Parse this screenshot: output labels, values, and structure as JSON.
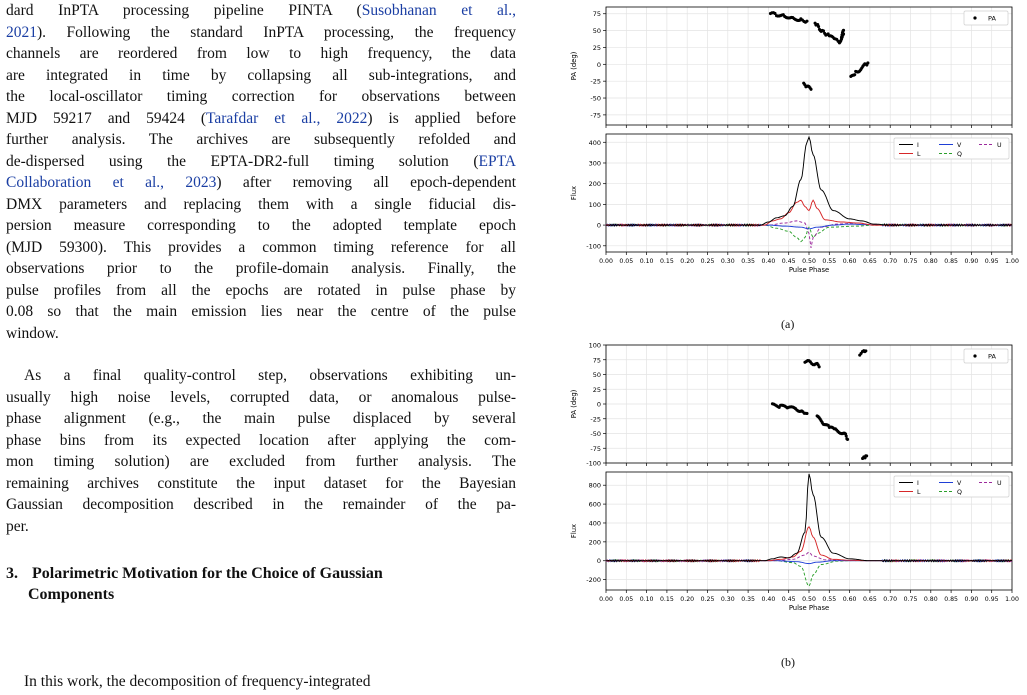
{
  "body_text": {
    "para1_lines": [
      [
        "dard InPTA processing pipeline PINTA (",
        {
          "cite": "Susobhanan et al.,"
        }
      ],
      [
        {
          "cite": "2021"
        },
        "). Following the standard InPTA processing, the frequency"
      ],
      [
        "channels are reordered from low to high frequency, the data"
      ],
      [
        "are integrated in time by collapsing all sub-integrations, and"
      ],
      [
        "the local-oscillator timing correction for observations between"
      ],
      [
        "MJD 59217 and 59424 (",
        {
          "cite": "Tarafdar et al.,"
        },
        " ",
        {
          "cite": "2022"
        },
        ") is applied before"
      ],
      [
        "further analysis.  The archives are subsequently refolded and"
      ],
      [
        "de-dispersed using the EPTA-DR2-full timing solution (",
        {
          "cite": "EPTA"
        }
      ],
      [
        {
          "cite": "Collaboration et al.,"
        },
        " ",
        {
          "cite": "2023"
        },
        ") after removing all epoch-dependent"
      ],
      [
        "DMX parameters and replacing them with a single fiducial dis-"
      ],
      [
        "persion measure corresponding to the adopted template epoch"
      ],
      [
        "(MJD 59300). This provides a common timing reference for all"
      ],
      [
        "observations prior to the profile-domain analysis.  Finally, the"
      ],
      [
        "pulse profiles from all the epochs are rotated in pulse phase by"
      ],
      [
        "0.08 so that the main emission lies near the centre of the pulse"
      ],
      [
        "window."
      ]
    ],
    "para2_lines": [
      [
        "As a final quality-control step, observations exhibiting un-"
      ],
      [
        "usually high noise levels, corrupted data, or anomalous pulse-"
      ],
      [
        "phase alignment (e.g., the main pulse displaced by several"
      ],
      [
        "phase bins from its expected location after applying the com-"
      ],
      [
        "mon timing solution) are excluded from further analysis.  The"
      ],
      [
        "remaining archives constitute the input dataset for the Bayesian"
      ],
      [
        "Gaussian decomposition described in the remainder of the pa-"
      ],
      [
        "per."
      ]
    ],
    "section_number": "3.",
    "section_title_line1": "Polarimetric Motivation for the Choice of Gaussian",
    "section_title_line2": "Components",
    "para3_partial": "In this work, the decomposition of frequency-integrated"
  },
  "figure": {
    "caption_a": "(a)",
    "caption_b": "(b)",
    "pa_ylabel": "PA (deg)",
    "flux_ylabel": "Flux",
    "xlabel": "Pulse Phase",
    "legend_pa": "PA",
    "legend_stokes": [
      "I",
      "L",
      "V",
      "Q",
      "U"
    ],
    "colors": {
      "I": "#000000",
      "L": "#d62728",
      "V": "#1f3fd6",
      "Q": "#2ca02c",
      "U": "#9c2a9c"
    }
  },
  "chart_data": [
    {
      "type": "scatter",
      "panel": "(a) PA",
      "ylabel": "PA (deg)",
      "xlim": [
        0.0,
        1.0
      ],
      "ylim": [
        -90,
        85
      ],
      "yticks": [
        -75,
        -50,
        -25,
        0,
        25,
        50,
        75
      ],
      "xticks": [
        0.0,
        0.05,
        0.1,
        0.15,
        0.2,
        0.25,
        0.3,
        0.35,
        0.4,
        0.45,
        0.5,
        0.55,
        0.6,
        0.65,
        0.7,
        0.75,
        0.8,
        0.85,
        0.9,
        0.95,
        1.0
      ],
      "grid": true,
      "legend": "top-right",
      "series": [
        {
          "name": "PA",
          "segments": [
            [
              [
                0.405,
                75
              ],
              [
                0.42,
                74
              ],
              [
                0.44,
                72
              ],
              [
                0.46,
                69
              ],
              [
                0.48,
                66
              ],
              [
                0.495,
                64
              ]
            ],
            [
              [
                0.487,
                -30
              ],
              [
                0.495,
                -33
              ],
              [
                0.505,
                -37
              ]
            ],
            [
              [
                0.515,
                62
              ],
              [
                0.53,
                50
              ],
              [
                0.55,
                42
              ],
              [
                0.565,
                36
              ],
              [
                0.575,
                33
              ],
              [
                0.585,
                45
              ]
            ],
            [
              [
                0.585,
                50
              ],
              [
                0.58,
                40
              ]
            ],
            [
              [
                0.603,
                -20
              ],
              [
                0.615,
                -12
              ],
              [
                0.625,
                -8
              ],
              [
                0.64,
                0
              ],
              [
                0.645,
                2
              ]
            ]
          ]
        }
      ]
    },
    {
      "type": "line",
      "panel": "(a) Flux",
      "ylabel": "Flux",
      "xlabel": "Pulse Phase",
      "xlim": [
        0.0,
        1.0
      ],
      "ylim": [
        -130,
        440
      ],
      "yticks": [
        -100,
        0,
        100,
        200,
        300,
        400
      ],
      "xticks": [
        0.0,
        0.05,
        0.1,
        0.15,
        0.2,
        0.25,
        0.3,
        0.35,
        0.4,
        0.45,
        0.5,
        0.55,
        0.6,
        0.65,
        0.7,
        0.75,
        0.8,
        0.85,
        0.9,
        0.95,
        1.0
      ],
      "grid": true,
      "legend": "top-right",
      "series": [
        {
          "name": "I",
          "points": [
            [
              0,
              0
            ],
            [
              0.38,
              0
            ],
            [
              0.4,
              15
            ],
            [
              0.42,
              35
            ],
            [
              0.44,
              45
            ],
            [
              0.46,
              90
            ],
            [
              0.48,
              220
            ],
            [
              0.495,
              400
            ],
            [
              0.5,
              425
            ],
            [
              0.51,
              340
            ],
            [
              0.53,
              170
            ],
            [
              0.56,
              70
            ],
            [
              0.6,
              30
            ],
            [
              0.63,
              20
            ],
            [
              0.66,
              5
            ],
            [
              0.7,
              0
            ],
            [
              1.0,
              0
            ]
          ]
        },
        {
          "name": "L",
          "points": [
            [
              0,
              0
            ],
            [
              0.39,
              0
            ],
            [
              0.41,
              20
            ],
            [
              0.43,
              30
            ],
            [
              0.45,
              60
            ],
            [
              0.47,
              110
            ],
            [
              0.48,
              120
            ],
            [
              0.49,
              90
            ],
            [
              0.5,
              70
            ],
            [
              0.51,
              120
            ],
            [
              0.52,
              80
            ],
            [
              0.54,
              25
            ],
            [
              0.58,
              15
            ],
            [
              0.62,
              10
            ],
            [
              0.66,
              0
            ],
            [
              1.0,
              0
            ]
          ]
        },
        {
          "name": "V",
          "points": [
            [
              0,
              0
            ],
            [
              0.4,
              0
            ],
            [
              0.44,
              -5
            ],
            [
              0.48,
              -10
            ],
            [
              0.5,
              -18
            ],
            [
              0.52,
              -10
            ],
            [
              0.56,
              0
            ],
            [
              0.6,
              5
            ],
            [
              0.64,
              2
            ],
            [
              0.7,
              0
            ],
            [
              1.0,
              0
            ]
          ]
        },
        {
          "name": "Q",
          "points": [
            [
              0,
              0
            ],
            [
              0.39,
              0
            ],
            [
              0.42,
              -15
            ],
            [
              0.45,
              -30
            ],
            [
              0.47,
              -60
            ],
            [
              0.48,
              -80
            ],
            [
              0.49,
              -60
            ],
            [
              0.5,
              -10
            ],
            [
              0.51,
              -60
            ],
            [
              0.52,
              -40
            ],
            [
              0.55,
              -10
            ],
            [
              0.62,
              -5
            ],
            [
              0.66,
              0
            ],
            [
              1.0,
              0
            ]
          ]
        },
        {
          "name": "U",
          "points": [
            [
              0,
              0
            ],
            [
              0.4,
              0
            ],
            [
              0.44,
              10
            ],
            [
              0.47,
              20
            ],
            [
              0.49,
              10
            ],
            [
              0.5,
              -40
            ],
            [
              0.505,
              -110
            ],
            [
              0.51,
              -60
            ],
            [
              0.53,
              -10
            ],
            [
              0.57,
              5
            ],
            [
              0.62,
              10
            ],
            [
              0.66,
              0
            ],
            [
              1.0,
              0
            ]
          ]
        }
      ]
    },
    {
      "type": "scatter",
      "panel": "(b) PA",
      "ylabel": "PA (deg)",
      "xlim": [
        0.0,
        1.0
      ],
      "ylim": [
        -100,
        100
      ],
      "yticks": [
        -100,
        -75,
        -50,
        -25,
        0,
        25,
        50,
        75,
        100
      ],
      "xticks": [
        0.0,
        0.05,
        0.1,
        0.15,
        0.2,
        0.25,
        0.3,
        0.35,
        0.4,
        0.45,
        0.5,
        0.55,
        0.6,
        0.65,
        0.7,
        0.75,
        0.8,
        0.85,
        0.9,
        0.95,
        1.0
      ],
      "grid": true,
      "legend": "top-right",
      "series": [
        {
          "name": "PA",
          "segments": [
            [
              [
                0.41,
                -2
              ],
              [
                0.43,
                -4
              ],
              [
                0.45,
                -6
              ],
              [
                0.47,
                -9
              ],
              [
                0.485,
                -12
              ],
              [
                0.495,
                -16
              ]
            ],
            [
              [
                0.49,
                73
              ],
              [
                0.5,
                71
              ],
              [
                0.51,
                69
              ],
              [
                0.52,
                67
              ],
              [
                0.525,
                63
              ]
            ],
            [
              [
                0.52,
                -22
              ],
              [
                0.535,
                -32
              ],
              [
                0.55,
                -40
              ],
              [
                0.565,
                -44
              ],
              [
                0.58,
                -48
              ],
              [
                0.59,
                -53
              ],
              [
                0.595,
                -60
              ]
            ],
            [
              [
                0.625,
                85
              ],
              [
                0.635,
                88
              ],
              [
                0.64,
                90
              ]
            ],
            [
              [
                0.632,
                -90
              ],
              [
                0.638,
                -89
              ],
              [
                0.642,
                -88
              ]
            ]
          ]
        }
      ]
    },
    {
      "type": "line",
      "panel": "(b) Flux",
      "ylabel": "Flux",
      "xlabel": "Pulse Phase",
      "xlim": [
        0.0,
        1.0
      ],
      "ylim": [
        -310,
        940
      ],
      "yticks": [
        -200,
        0,
        200,
        400,
        600,
        800
      ],
      "xticks": [
        0.0,
        0.05,
        0.1,
        0.15,
        0.2,
        0.25,
        0.3,
        0.35,
        0.4,
        0.45,
        0.5,
        0.55,
        0.6,
        0.65,
        0.7,
        0.75,
        0.8,
        0.85,
        0.9,
        0.95,
        1.0
      ],
      "grid": true,
      "legend": "top-right",
      "series": [
        {
          "name": "I",
          "points": [
            [
              0,
              0
            ],
            [
              0.39,
              0
            ],
            [
              0.41,
              20
            ],
            [
              0.43,
              40
            ],
            [
              0.45,
              30
            ],
            [
              0.47,
              80
            ],
            [
              0.49,
              300
            ],
            [
              0.5,
              920
            ],
            [
              0.51,
              700
            ],
            [
              0.53,
              250
            ],
            [
              0.56,
              80
            ],
            [
              0.6,
              20
            ],
            [
              0.65,
              0
            ],
            [
              1.0,
              0
            ]
          ]
        },
        {
          "name": "L",
          "points": [
            [
              0,
              0
            ],
            [
              0.4,
              0
            ],
            [
              0.43,
              15
            ],
            [
              0.46,
              40
            ],
            [
              0.48,
              100
            ],
            [
              0.5,
              360
            ],
            [
              0.51,
              250
            ],
            [
              0.53,
              60
            ],
            [
              0.56,
              15
            ],
            [
              0.6,
              5
            ],
            [
              0.65,
              0
            ],
            [
              1.0,
              0
            ]
          ]
        },
        {
          "name": "V",
          "points": [
            [
              0,
              0
            ],
            [
              0.42,
              0
            ],
            [
              0.47,
              -10
            ],
            [
              0.5,
              -30
            ],
            [
              0.52,
              -15
            ],
            [
              0.56,
              0
            ],
            [
              1.0,
              0
            ]
          ]
        },
        {
          "name": "Q",
          "points": [
            [
              0,
              0
            ],
            [
              0.42,
              0
            ],
            [
              0.46,
              -20
            ],
            [
              0.48,
              -60
            ],
            [
              0.5,
              -270
            ],
            [
              0.51,
              -150
            ],
            [
              0.53,
              -40
            ],
            [
              0.57,
              -5
            ],
            [
              0.6,
              0
            ],
            [
              1.0,
              0
            ]
          ]
        },
        {
          "name": "U",
          "points": [
            [
              0,
              0
            ],
            [
              0.42,
              0
            ],
            [
              0.46,
              15
            ],
            [
              0.49,
              60
            ],
            [
              0.5,
              90
            ],
            [
              0.51,
              50
            ],
            [
              0.54,
              10
            ],
            [
              0.6,
              0
            ],
            [
              1.0,
              0
            ]
          ]
        }
      ]
    }
  ]
}
